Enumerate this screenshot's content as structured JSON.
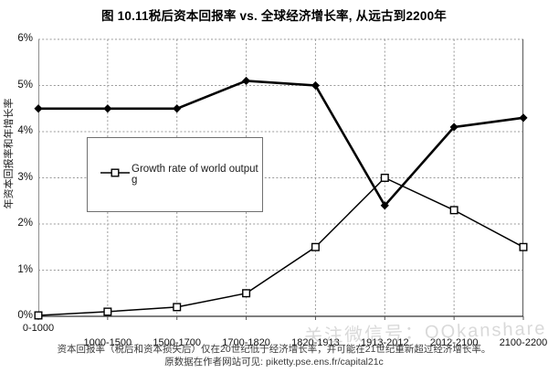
{
  "title": "图 10.11税后资本回报率 vs. 全球经济增长率, 从远古到2200年",
  "colors": {
    "line": "#000000",
    "grid": "#9a9a9a",
    "background": "#ffffff",
    "footnote": "#3a3a3a",
    "watermark": "#b5b5b5"
  },
  "chart_data": {
    "type": "line",
    "categories": [
      "0-1000",
      "1000-1500",
      "1500-1700",
      "1700-1820",
      "1820-1913",
      "1913-2012",
      "2012-2100",
      "2100-2200"
    ],
    "series": [
      {
        "name": "税后资本回报率",
        "marker": "diamond",
        "legend_visible": false,
        "values": [
          4.5,
          4.5,
          4.5,
          5.1,
          5.0,
          2.4,
          4.1,
          4.3
        ]
      },
      {
        "name": "Growth rate of world output g",
        "marker": "square",
        "legend_visible": true,
        "values": [
          0.02,
          0.1,
          0.2,
          0.5,
          1.5,
          3.0,
          2.3,
          1.5
        ]
      }
    ],
    "title": "图 10.11税后资本回报率 vs. 全球经济增长率, 从远古到2200年",
    "xlabel": "",
    "ylabel": "年资本回报率和年增长率",
    "ylim": [
      0,
      6
    ],
    "y_ticks": [
      "6%",
      "5%",
      "4%",
      "3%",
      "2%",
      "1%",
      "0%"
    ],
    "grid": "dotted horizontal and vertical gridlines",
    "legend_position": "inside upper-left"
  },
  "legend": {
    "label": "Growth rate of world output g"
  },
  "footnotes": {
    "line1": "资本回报率（税后和资本损失后）仅在20世纪低于经济增长率，并可能在21世纪重新超过经济增长率。",
    "line2": "原数据在作者网站可见: piketty.pse.ens.fr/capital21c"
  },
  "watermark": "关注微信号：QQkanshare"
}
